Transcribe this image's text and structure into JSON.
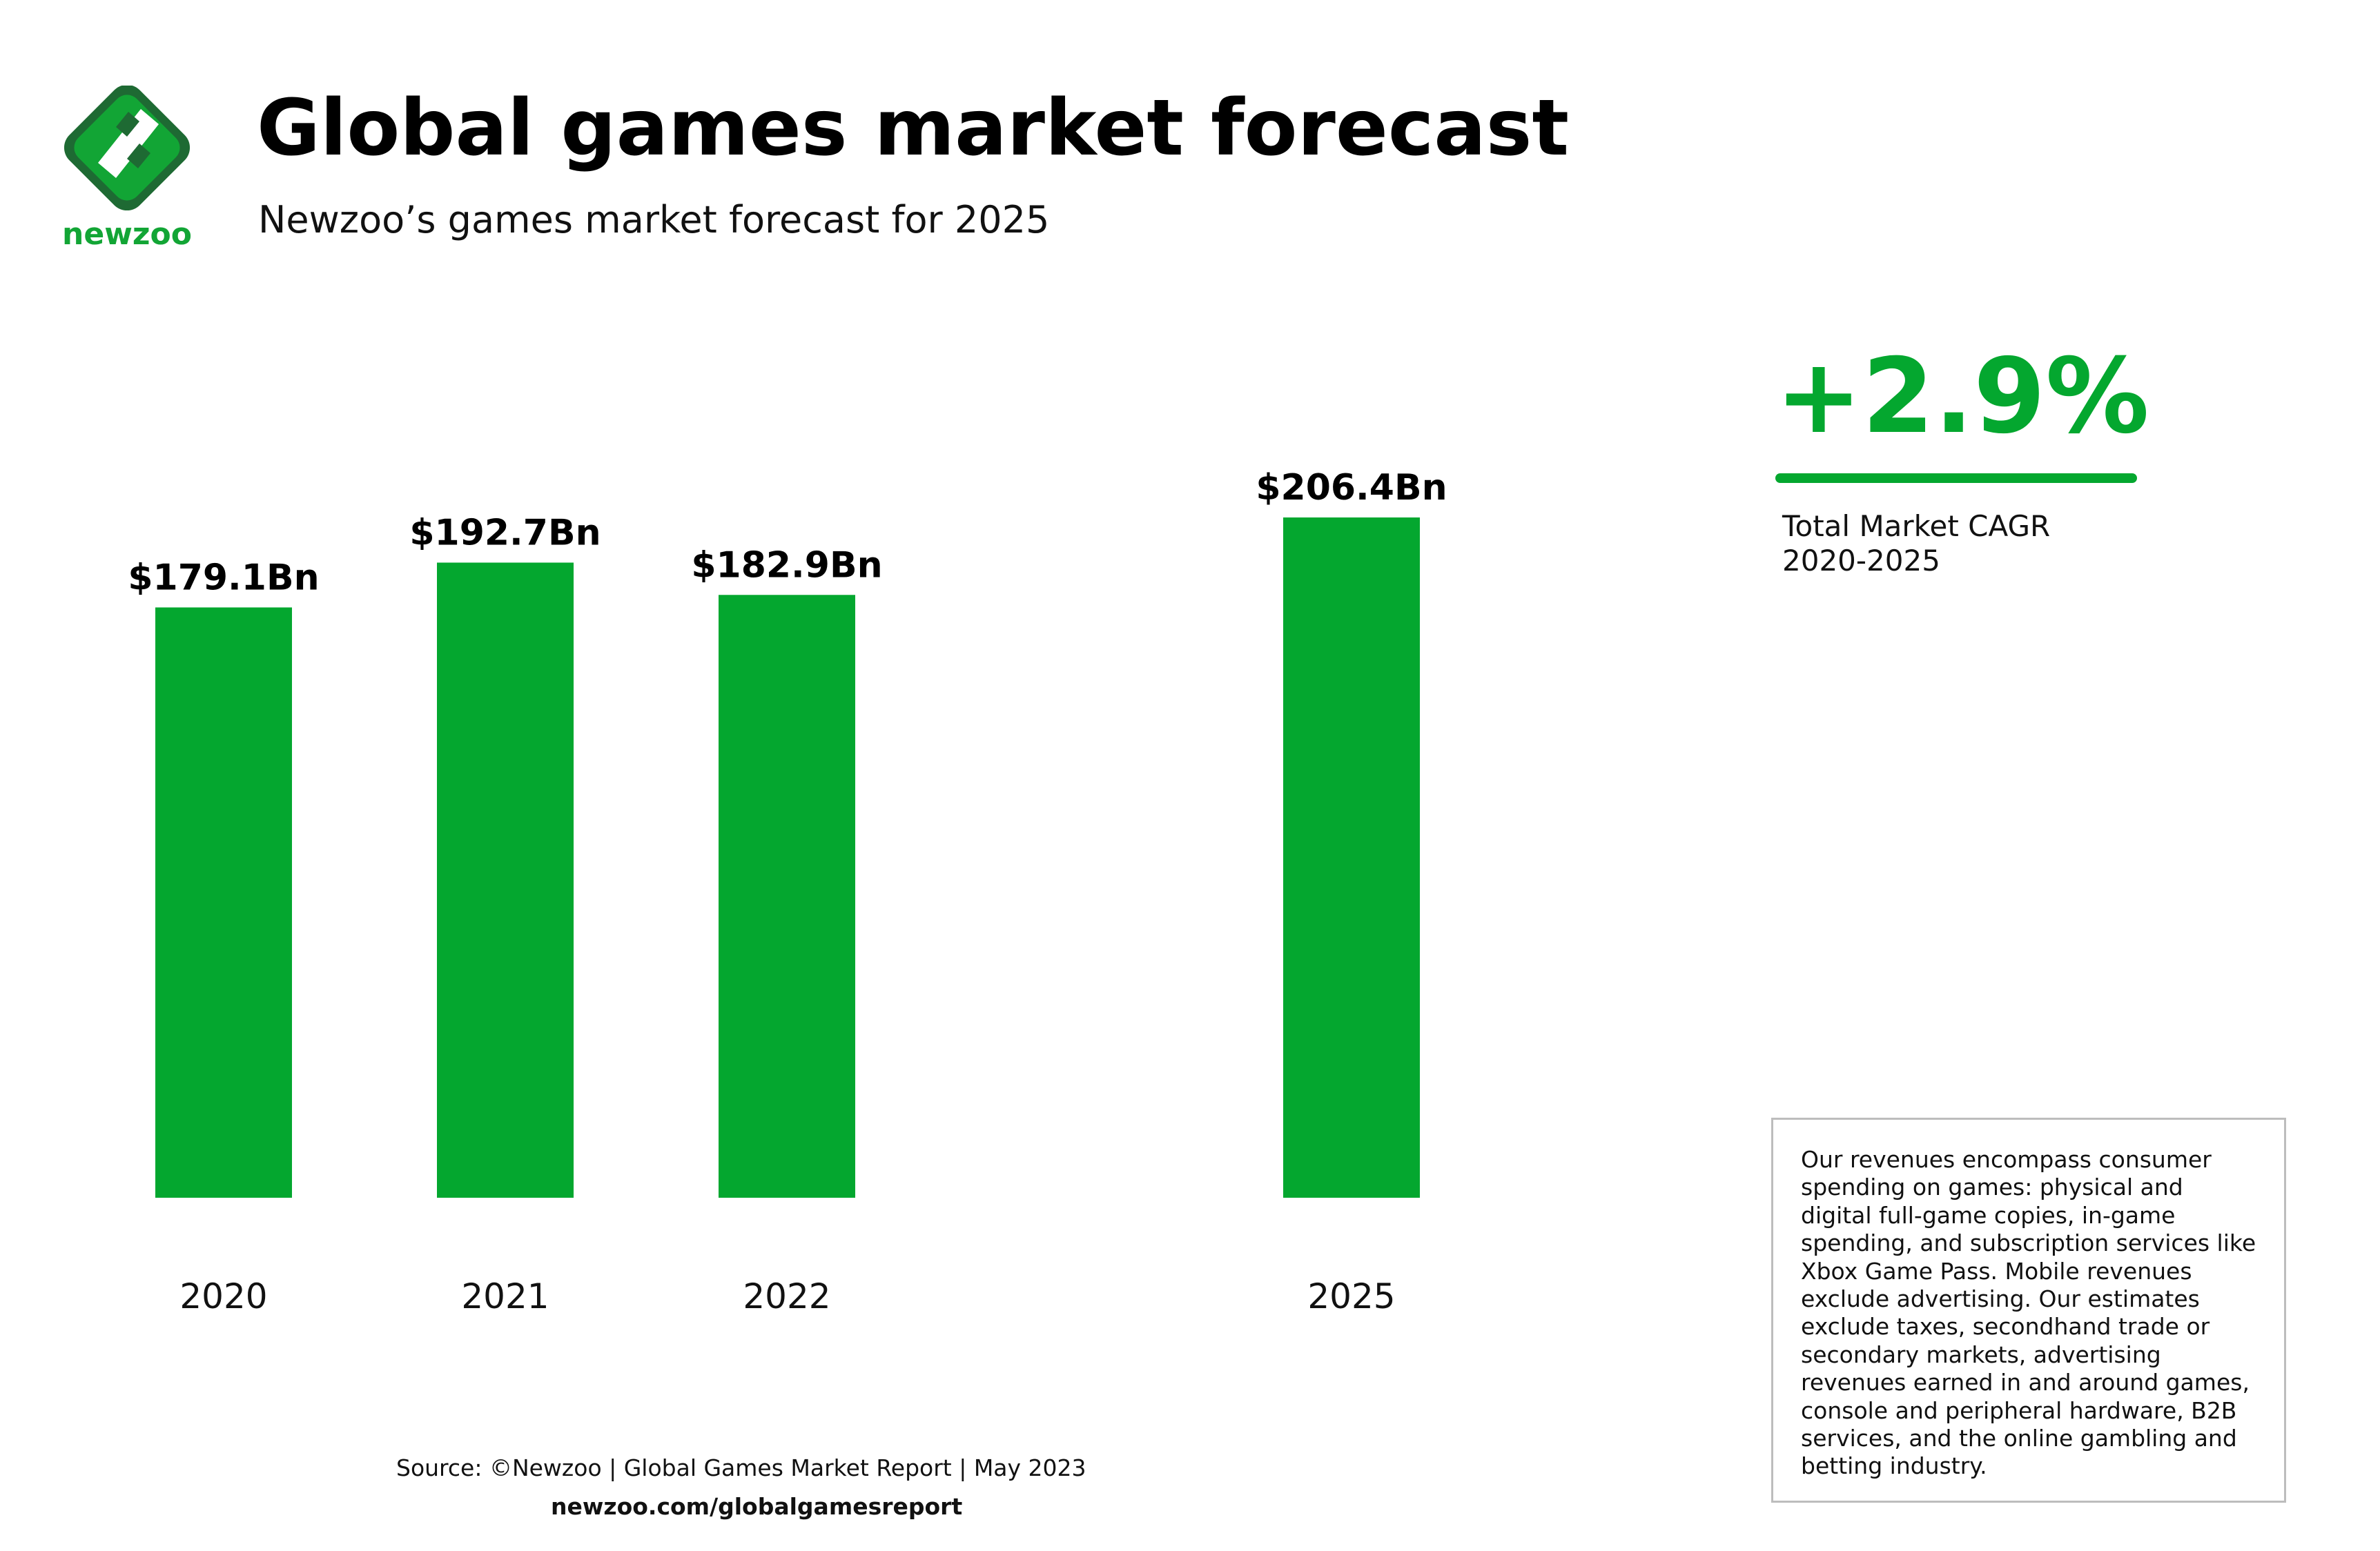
{
  "brand": {
    "logo_text": "newzoo",
    "logo_icon": "newzoo-logo-icon",
    "accent_color": "#04a72f",
    "dark_green": "#1e6a33"
  },
  "header": {
    "title": "Global games market forecast",
    "subtitle": "Newzoo’s games market forecast for 2025"
  },
  "chart_data": {
    "type": "bar",
    "categories": [
      "2020",
      "2021",
      "2022",
      "2025"
    ],
    "values": [
      179.1,
      192.7,
      182.9,
      206.4
    ],
    "data_labels": [
      "$179.1Bn",
      "$192.7Bn",
      "$182.9Bn",
      "$206.4Bn"
    ],
    "title": "Global games market forecast",
    "xlabel": "",
    "ylabel": "",
    "unit": "$Bn",
    "ylim": [
      0,
      206.4
    ],
    "grid": false,
    "bar_color": "#04a72f"
  },
  "cagr": {
    "value": "+2.9%",
    "label_line1": "Total Market CAGR",
    "label_line2": "2020-2025",
    "color": "#04a72f"
  },
  "note": {
    "lines": [
      "Our revenues encompass consumer",
      "spending on games: physical and",
      "digital full-game copies, in-game",
      "spending, and subscription services like",
      "Xbox Game Pass. Mobile revenues",
      "exclude advertising. Our estimates",
      "exclude taxes, secondhand trade or",
      "secondary markets, advertising",
      "revenues earned in and around games,",
      "console and peripheral hardware, B2B",
      "services, and the online gambling and",
      "betting industry."
    ]
  },
  "footer": {
    "source": "Source: ©Newzoo | Global Games Market Report | May 2023",
    "url": "newzoo.com/globalgamesreport"
  }
}
